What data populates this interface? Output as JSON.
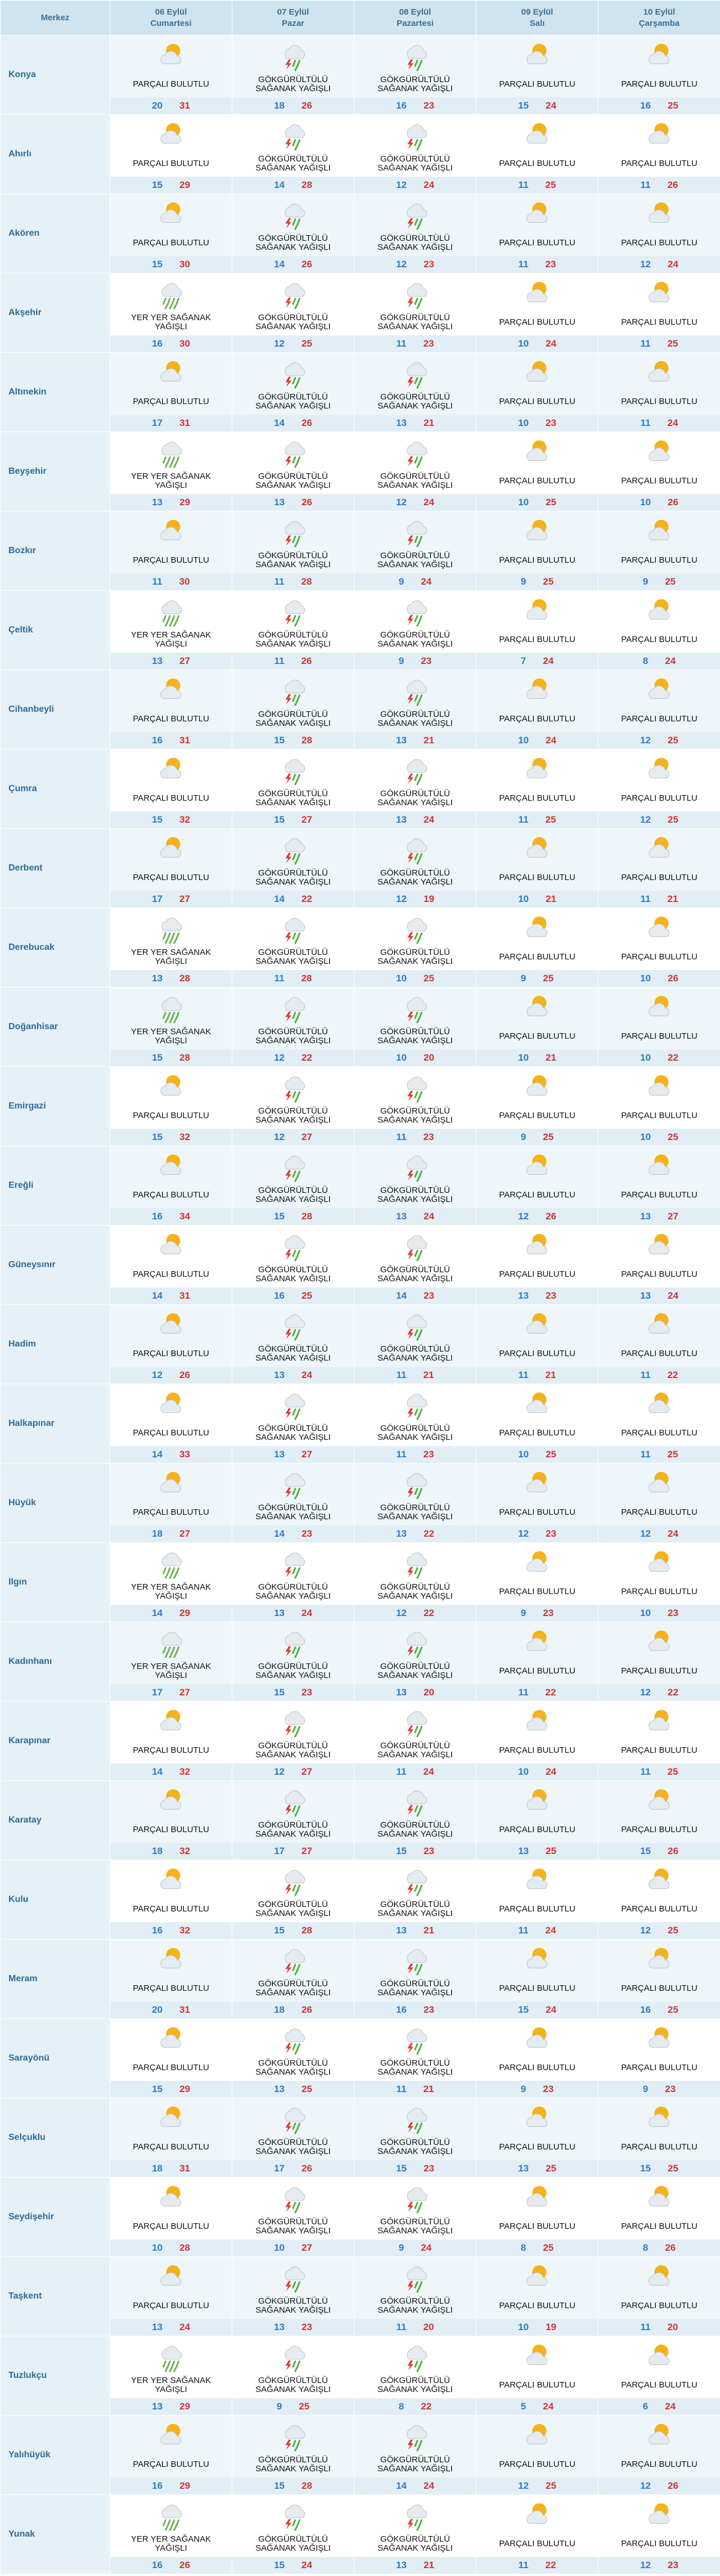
{
  "header": {
    "title": "Merkez",
    "days": [
      {
        "date": "06 Eylül",
        "weekday": "Cumartesi"
      },
      {
        "date": "07 Eylül",
        "weekday": "Pazar"
      },
      {
        "date": "08 Eylül",
        "weekday": "Pazartesi"
      },
      {
        "date": "09 Eylül",
        "weekday": "Salı"
      },
      {
        "date": "10 Eylül",
        "weekday": "Çarşamba"
      }
    ]
  },
  "rows": [
    {
      "name": "Konya",
      "days": [
        {
          "condition": "PARÇALI BULUTLU",
          "min": 20,
          "max": 31
        },
        {
          "condition": "GÖKGÜRÜLTÜLÜ SAĞANAK YAĞIŞLI",
          "min": 18,
          "max": 26
        },
        {
          "condition": "GÖKGÜRÜLTÜLÜ SAĞANAK YAĞIŞLI",
          "min": 16,
          "max": 23
        },
        {
          "condition": "PARÇALI BULUTLU",
          "min": 15,
          "max": 24
        },
        {
          "condition": "PARÇALI BULUTLU",
          "min": 16,
          "max": 25
        }
      ]
    },
    {
      "name": "Ahırlı",
      "days": [
        {
          "condition": "PARÇALI BULUTLU",
          "min": 15,
          "max": 29
        },
        {
          "condition": "GÖKGÜRÜLTÜLÜ SAĞANAK YAĞIŞLI",
          "min": 14,
          "max": 28
        },
        {
          "condition": "GÖKGÜRÜLTÜLÜ SAĞANAK YAĞIŞLI",
          "min": 12,
          "max": 24
        },
        {
          "condition": "PARÇALI BULUTLU",
          "min": 11,
          "max": 25
        },
        {
          "condition": "PARÇALI BULUTLU",
          "min": 11,
          "max": 26
        }
      ]
    },
    {
      "name": "Akören",
      "days": [
        {
          "condition": "PARÇALI BULUTLU",
          "min": 15,
          "max": 30
        },
        {
          "condition": "GÖKGÜRÜLTÜLÜ SAĞANAK YAĞIŞLI",
          "min": 14,
          "max": 26
        },
        {
          "condition": "GÖKGÜRÜLTÜLÜ SAĞANAK YAĞIŞLI",
          "min": 12,
          "max": 23
        },
        {
          "condition": "PARÇALI BULUTLU",
          "min": 11,
          "max": 23
        },
        {
          "condition": "PARÇALI BULUTLU",
          "min": 12,
          "max": 24
        }
      ]
    },
    {
      "name": "Akşehir",
      "days": [
        {
          "condition": "YER YER SAĞANAK YAĞIŞLI",
          "min": 16,
          "max": 30
        },
        {
          "condition": "GÖKGÜRÜLTÜLÜ SAĞANAK YAĞIŞLI",
          "min": 12,
          "max": 25
        },
        {
          "condition": "GÖKGÜRÜLTÜLÜ SAĞANAK YAĞIŞLI",
          "min": 11,
          "max": 23
        },
        {
          "condition": "PARÇALI BULUTLU",
          "min": 10,
          "max": 24
        },
        {
          "condition": "PARÇALI BULUTLU",
          "min": 11,
          "max": 25
        }
      ]
    },
    {
      "name": "Altınekin",
      "days": [
        {
          "condition": "PARÇALI BULUTLU",
          "min": 17,
          "max": 31
        },
        {
          "condition": "GÖKGÜRÜLTÜLÜ SAĞANAK YAĞIŞLI",
          "min": 14,
          "max": 26
        },
        {
          "condition": "GÖKGÜRÜLTÜLÜ SAĞANAK YAĞIŞLI",
          "min": 13,
          "max": 21
        },
        {
          "condition": "PARÇALI BULUTLU",
          "min": 10,
          "max": 23
        },
        {
          "condition": "PARÇALI BULUTLU",
          "min": 11,
          "max": 24
        }
      ]
    },
    {
      "name": "Beyşehir",
      "days": [
        {
          "condition": "YER YER SAĞANAK YAĞIŞLI",
          "min": 13,
          "max": 29
        },
        {
          "condition": "GÖKGÜRÜLTÜLÜ SAĞANAK YAĞIŞLI",
          "min": 13,
          "max": 26
        },
        {
          "condition": "GÖKGÜRÜLTÜLÜ SAĞANAK YAĞIŞLI",
          "min": 12,
          "max": 24
        },
        {
          "condition": "PARÇALI BULUTLU",
          "min": 10,
          "max": 25
        },
        {
          "condition": "PARÇALI BULUTLU",
          "min": 10,
          "max": 26
        }
      ]
    },
    {
      "name": "Bozkır",
      "days": [
        {
          "condition": "PARÇALI BULUTLU",
          "min": 11,
          "max": 30
        },
        {
          "condition": "GÖKGÜRÜLTÜLÜ SAĞANAK YAĞIŞLI",
          "min": 11,
          "max": 28
        },
        {
          "condition": "GÖKGÜRÜLTÜLÜ SAĞANAK YAĞIŞLI",
          "min": 9,
          "max": 24
        },
        {
          "condition": "PARÇALI BULUTLU",
          "min": 9,
          "max": 25
        },
        {
          "condition": "PARÇALI BULUTLU",
          "min": 9,
          "max": 25
        }
      ]
    },
    {
      "name": "Çeltik",
      "days": [
        {
          "condition": "YER YER SAĞANAK YAĞIŞLI",
          "min": 13,
          "max": 27
        },
        {
          "condition": "GÖKGÜRÜLTÜLÜ SAĞANAK YAĞIŞLI",
          "min": 11,
          "max": 26
        },
        {
          "condition": "GÖKGÜRÜLTÜLÜ SAĞANAK YAĞIŞLI",
          "min": 9,
          "max": 23
        },
        {
          "condition": "PARÇALI BULUTLU",
          "min": 7,
          "max": 24
        },
        {
          "condition": "PARÇALI BULUTLU",
          "min": 8,
          "max": 24
        }
      ]
    },
    {
      "name": "Cihanbeyli",
      "days": [
        {
          "condition": "PARÇALI BULUTLU",
          "min": 16,
          "max": 31
        },
        {
          "condition": "GÖKGÜRÜLTÜLÜ SAĞANAK YAĞIŞLI",
          "min": 15,
          "max": 28
        },
        {
          "condition": "GÖKGÜRÜLTÜLÜ SAĞANAK YAĞIŞLI",
          "min": 13,
          "max": 21
        },
        {
          "condition": "PARÇALI BULUTLU",
          "min": 10,
          "max": 24
        },
        {
          "condition": "PARÇALI BULUTLU",
          "min": 12,
          "max": 25
        }
      ]
    },
    {
      "name": "Çumra",
      "days": [
        {
          "condition": "PARÇALI BULUTLU",
          "min": 15,
          "max": 32
        },
        {
          "condition": "GÖKGÜRÜLTÜLÜ SAĞANAK YAĞIŞLI",
          "min": 15,
          "max": 27
        },
        {
          "condition": "GÖKGÜRÜLTÜLÜ SAĞANAK YAĞIŞLI",
          "min": 13,
          "max": 24
        },
        {
          "condition": "PARÇALI BULUTLU",
          "min": 11,
          "max": 25
        },
        {
          "condition": "PARÇALI BULUTLU",
          "min": 12,
          "max": 25
        }
      ]
    },
    {
      "name": "Derbent",
      "days": [
        {
          "condition": "PARÇALI BULUTLU",
          "min": 17,
          "max": 27
        },
        {
          "condition": "GÖKGÜRÜLTÜLÜ SAĞANAK YAĞIŞLI",
          "min": 14,
          "max": 22
        },
        {
          "condition": "GÖKGÜRÜLTÜLÜ SAĞANAK YAĞIŞLI",
          "min": 12,
          "max": 19
        },
        {
          "condition": "PARÇALI BULUTLU",
          "min": 10,
          "max": 21
        },
        {
          "condition": "PARÇALI BULUTLU",
          "min": 11,
          "max": 21
        }
      ]
    },
    {
      "name": "Derebucak",
      "days": [
        {
          "condition": "YER YER SAĞANAK YAĞIŞLI",
          "min": 13,
          "max": 28
        },
        {
          "condition": "GÖKGÜRÜLTÜLÜ SAĞANAK YAĞIŞLI",
          "min": 11,
          "max": 28
        },
        {
          "condition": "GÖKGÜRÜLTÜLÜ SAĞANAK YAĞIŞLI",
          "min": 10,
          "max": 25
        },
        {
          "condition": "PARÇALI BULUTLU",
          "min": 9,
          "max": 25
        },
        {
          "condition": "PARÇALI BULUTLU",
          "min": 10,
          "max": 26
        }
      ]
    },
    {
      "name": "Doğanhisar",
      "days": [
        {
          "condition": "YER YER SAĞANAK YAĞIŞLI",
          "min": 15,
          "max": 28
        },
        {
          "condition": "GÖKGÜRÜLTÜLÜ SAĞANAK YAĞIŞLI",
          "min": 12,
          "max": 22
        },
        {
          "condition": "GÖKGÜRÜLTÜLÜ SAĞANAK YAĞIŞLI",
          "min": 10,
          "max": 20
        },
        {
          "condition": "PARÇALI BULUTLU",
          "min": 10,
          "max": 21
        },
        {
          "condition": "PARÇALI BULUTLU",
          "min": 10,
          "max": 22
        }
      ]
    },
    {
      "name": "Emirgazi",
      "days": [
        {
          "condition": "PARÇALI BULUTLU",
          "min": 15,
          "max": 32
        },
        {
          "condition": "GÖKGÜRÜLTÜLÜ SAĞANAK YAĞIŞLI",
          "min": 12,
          "max": 27
        },
        {
          "condition": "GÖKGÜRÜLTÜLÜ SAĞANAK YAĞIŞLI",
          "min": 11,
          "max": 23
        },
        {
          "condition": "PARÇALI BULUTLU",
          "min": 9,
          "max": 25
        },
        {
          "condition": "PARÇALI BULUTLU",
          "min": 10,
          "max": 25
        }
      ]
    },
    {
      "name": "Ereğli",
      "days": [
        {
          "condition": "PARÇALI BULUTLU",
          "min": 16,
          "max": 34
        },
        {
          "condition": "GÖKGÜRÜLTÜLÜ SAĞANAK YAĞIŞLI",
          "min": 15,
          "max": 28
        },
        {
          "condition": "GÖKGÜRÜLTÜLÜ SAĞANAK YAĞIŞLI",
          "min": 13,
          "max": 24
        },
        {
          "condition": "PARÇALI BULUTLU",
          "min": 12,
          "max": 26
        },
        {
          "condition": "PARÇALI BULUTLU",
          "min": 13,
          "max": 27
        }
      ]
    },
    {
      "name": "Güneysınır",
      "days": [
        {
          "condition": "PARÇALI BULUTLU",
          "min": 14,
          "max": 31
        },
        {
          "condition": "GÖKGÜRÜLTÜLÜ SAĞANAK YAĞIŞLI",
          "min": 16,
          "max": 25
        },
        {
          "condition": "GÖKGÜRÜLTÜLÜ SAĞANAK YAĞIŞLI",
          "min": 14,
          "max": 23
        },
        {
          "condition": "PARÇALI BULUTLU",
          "min": 13,
          "max": 23
        },
        {
          "condition": "PARÇALI BULUTLU",
          "min": 13,
          "max": 24
        }
      ]
    },
    {
      "name": "Hadim",
      "days": [
        {
          "condition": "PARÇALI BULUTLU",
          "min": 12,
          "max": 26
        },
        {
          "condition": "GÖKGÜRÜLTÜLÜ SAĞANAK YAĞIŞLI",
          "min": 13,
          "max": 24
        },
        {
          "condition": "GÖKGÜRÜLTÜLÜ SAĞANAK YAĞIŞLI",
          "min": 11,
          "max": 21
        },
        {
          "condition": "PARÇALI BULUTLU",
          "min": 11,
          "max": 21
        },
        {
          "condition": "PARÇALI BULUTLU",
          "min": 11,
          "max": 22
        }
      ]
    },
    {
      "name": "Halkapınar",
      "days": [
        {
          "condition": "PARÇALI BULUTLU",
          "min": 14,
          "max": 33
        },
        {
          "condition": "GÖKGÜRÜLTÜLÜ SAĞANAK YAĞIŞLI",
          "min": 13,
          "max": 27
        },
        {
          "condition": "GÖKGÜRÜLTÜLÜ SAĞANAK YAĞIŞLI",
          "min": 11,
          "max": 23
        },
        {
          "condition": "PARÇALI BULUTLU",
          "min": 10,
          "max": 25
        },
        {
          "condition": "PARÇALI BULUTLU",
          "min": 11,
          "max": 25
        }
      ]
    },
    {
      "name": "Hüyük",
      "days": [
        {
          "condition": "PARÇALI BULUTLU",
          "min": 18,
          "max": 27
        },
        {
          "condition": "GÖKGÜRÜLTÜLÜ SAĞANAK YAĞIŞLI",
          "min": 14,
          "max": 23
        },
        {
          "condition": "GÖKGÜRÜLTÜLÜ SAĞANAK YAĞIŞLI",
          "min": 13,
          "max": 22
        },
        {
          "condition": "PARÇALI BULUTLU",
          "min": 12,
          "max": 23
        },
        {
          "condition": "PARÇALI BULUTLU",
          "min": 12,
          "max": 24
        }
      ]
    },
    {
      "name": "Ilgın",
      "days": [
        {
          "condition": "YER YER SAĞANAK YAĞIŞLI",
          "min": 14,
          "max": 29
        },
        {
          "condition": "GÖKGÜRÜLTÜLÜ SAĞANAK YAĞIŞLI",
          "min": 13,
          "max": 24
        },
        {
          "condition": "GÖKGÜRÜLTÜLÜ SAĞANAK YAĞIŞLI",
          "min": 12,
          "max": 22
        },
        {
          "condition": "PARÇALI BULUTLU",
          "min": 9,
          "max": 23
        },
        {
          "condition": "PARÇALI BULUTLU",
          "min": 10,
          "max": 23
        }
      ]
    },
    {
      "name": "Kadınhanı",
      "days": [
        {
          "condition": "YER YER SAĞANAK YAĞIŞLI",
          "min": 17,
          "max": 27
        },
        {
          "condition": "GÖKGÜRÜLTÜLÜ SAĞANAK YAĞIŞLI",
          "min": 15,
          "max": 23
        },
        {
          "condition": "GÖKGÜRÜLTÜLÜ SAĞANAK YAĞIŞLI",
          "min": 13,
          "max": 20
        },
        {
          "condition": "PARÇALI BULUTLU",
          "min": 11,
          "max": 22
        },
        {
          "condition": "PARÇALI BULUTLU",
          "min": 12,
          "max": 22
        }
      ]
    },
    {
      "name": "Karapınar",
      "days": [
        {
          "condition": "PARÇALI BULUTLU",
          "min": 14,
          "max": 32
        },
        {
          "condition": "GÖKGÜRÜLTÜLÜ SAĞANAK YAĞIŞLI",
          "min": 12,
          "max": 27
        },
        {
          "condition": "GÖKGÜRÜLTÜLÜ SAĞANAK YAĞIŞLI",
          "min": 11,
          "max": 24
        },
        {
          "condition": "PARÇALI BULUTLU",
          "min": 10,
          "max": 24
        },
        {
          "condition": "PARÇALI BULUTLU",
          "min": 11,
          "max": 25
        }
      ]
    },
    {
      "name": "Karatay",
      "days": [
        {
          "condition": "PARÇALI BULUTLU",
          "min": 18,
          "max": 32
        },
        {
          "condition": "GÖKGÜRÜLTÜLÜ SAĞANAK YAĞIŞLI",
          "min": 17,
          "max": 27
        },
        {
          "condition": "GÖKGÜRÜLTÜLÜ SAĞANAK YAĞIŞLI",
          "min": 15,
          "max": 23
        },
        {
          "condition": "PARÇALI BULUTLU",
          "min": 13,
          "max": 25
        },
        {
          "condition": "PARÇALI BULUTLU",
          "min": 15,
          "max": 26
        }
      ]
    },
    {
      "name": "Kulu",
      "days": [
        {
          "condition": "PARÇALI BULUTLU",
          "min": 16,
          "max": 32
        },
        {
          "condition": "GÖKGÜRÜLTÜLÜ SAĞANAK YAĞIŞLI",
          "min": 15,
          "max": 28
        },
        {
          "condition": "GÖKGÜRÜLTÜLÜ SAĞANAK YAĞIŞLI",
          "min": 13,
          "max": 21
        },
        {
          "condition": "PARÇALI BULUTLU",
          "min": 11,
          "max": 24
        },
        {
          "condition": "PARÇALI BULUTLU",
          "min": 12,
          "max": 25
        }
      ]
    },
    {
      "name": "Meram",
      "days": [
        {
          "condition": "PARÇALI BULUTLU",
          "min": 20,
          "max": 31
        },
        {
          "condition": "GÖKGÜRÜLTÜLÜ SAĞANAK YAĞIŞLI",
          "min": 18,
          "max": 26
        },
        {
          "condition": "GÖKGÜRÜLTÜLÜ SAĞANAK YAĞIŞLI",
          "min": 16,
          "max": 23
        },
        {
          "condition": "PARÇALI BULUTLU",
          "min": 15,
          "max": 24
        },
        {
          "condition": "PARÇALI BULUTLU",
          "min": 16,
          "max": 25
        }
      ]
    },
    {
      "name": "Sarayönü",
      "days": [
        {
          "condition": "PARÇALI BULUTLU",
          "min": 15,
          "max": 29
        },
        {
          "condition": "GÖKGÜRÜLTÜLÜ SAĞANAK YAĞIŞLI",
          "min": 13,
          "max": 25
        },
        {
          "condition": "GÖKGÜRÜLTÜLÜ SAĞANAK YAĞIŞLI",
          "min": 11,
          "max": 21
        },
        {
          "condition": "PARÇALI BULUTLU",
          "min": 9,
          "max": 23
        },
        {
          "condition": "PARÇALI BULUTLU",
          "min": 9,
          "max": 23
        }
      ]
    },
    {
      "name": "Selçuklu",
      "days": [
        {
          "condition": "PARÇALI BULUTLU",
          "min": 18,
          "max": 31
        },
        {
          "condition": "GÖKGÜRÜLTÜLÜ SAĞANAK YAĞIŞLI",
          "min": 17,
          "max": 26
        },
        {
          "condition": "GÖKGÜRÜLTÜLÜ SAĞANAK YAĞIŞLI",
          "min": 15,
          "max": 23
        },
        {
          "condition": "PARÇALI BULUTLU",
          "min": 13,
          "max": 25
        },
        {
          "condition": "PARÇALI BULUTLU",
          "min": 15,
          "max": 25
        }
      ]
    },
    {
      "name": "Seydişehir",
      "days": [
        {
          "condition": "PARÇALI BULUTLU",
          "min": 10,
          "max": 28
        },
        {
          "condition": "GÖKGÜRÜLTÜLÜ SAĞANAK YAĞIŞLI",
          "min": 10,
          "max": 27
        },
        {
          "condition": "GÖKGÜRÜLTÜLÜ SAĞANAK YAĞIŞLI",
          "min": 9,
          "max": 24
        },
        {
          "condition": "PARÇALI BULUTLU",
          "min": 8,
          "max": 25
        },
        {
          "condition": "PARÇALI BULUTLU",
          "min": 8,
          "max": 26
        }
      ]
    },
    {
      "name": "Taşkent",
      "days": [
        {
          "condition": "PARÇALI BULUTLU",
          "min": 13,
          "max": 24
        },
        {
          "condition": "GÖKGÜRÜLTÜLÜ SAĞANAK YAĞIŞLI",
          "min": 13,
          "max": 23
        },
        {
          "condition": "GÖKGÜRÜLTÜLÜ SAĞANAK YAĞIŞLI",
          "min": 11,
          "max": 20
        },
        {
          "condition": "PARÇALI BULUTLU",
          "min": 10,
          "max": 19
        },
        {
          "condition": "PARÇALI BULUTLU",
          "min": 11,
          "max": 20
        }
      ]
    },
    {
      "name": "Tuzlukçu",
      "days": [
        {
          "condition": "YER YER SAĞANAK YAĞIŞLI",
          "min": 13,
          "max": 29
        },
        {
          "condition": "GÖKGÜRÜLTÜLÜ SAĞANAK YAĞIŞLI",
          "min": 9,
          "max": 25
        },
        {
          "condition": "GÖKGÜRÜLTÜLÜ SAĞANAK YAĞIŞLI",
          "min": 8,
          "max": 22
        },
        {
          "condition": "PARÇALI BULUTLU",
          "min": 5,
          "max": 24
        },
        {
          "condition": "PARÇALI BULUTLU",
          "min": 6,
          "max": 24
        }
      ]
    },
    {
      "name": "Yalıhüyük",
      "days": [
        {
          "condition": "PARÇALI BULUTLU",
          "min": 16,
          "max": 29
        },
        {
          "condition": "GÖKGÜRÜLTÜLÜ SAĞANAK YAĞIŞLI",
          "min": 15,
          "max": 28
        },
        {
          "condition": "GÖKGÜRÜLTÜLÜ SAĞANAK YAĞIŞLI",
          "min": 14,
          "max": 24
        },
        {
          "condition": "PARÇALI BULUTLU",
          "min": 12,
          "max": 25
        },
        {
          "condition": "PARÇALI BULUTLU",
          "min": 12,
          "max": 26
        }
      ]
    },
    {
      "name": "Yunak",
      "days": [
        {
          "condition": "YER YER SAĞANAK YAĞIŞLI",
          "min": 16,
          "max": 26
        },
        {
          "condition": "GÖKGÜRÜLTÜLÜ SAĞANAK YAĞIŞLI",
          "min": 15,
          "max": 24
        },
        {
          "condition": "GÖKGÜRÜLTÜLÜ SAĞANAK YAĞIŞLI",
          "min": 13,
          "max": 21
        },
        {
          "condition": "PARÇALI BULUTLU",
          "min": 11,
          "max": 22
        },
        {
          "condition": "PARÇALI BULUTLU",
          "min": 12,
          "max": 23
        }
      ]
    }
  ]
}
